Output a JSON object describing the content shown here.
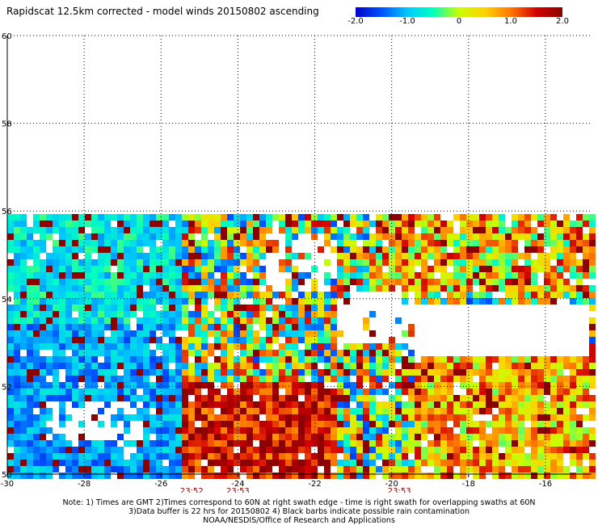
{
  "header": {
    "title": "Rapidscat 12.5km corrected - model winds 20150802 ascending"
  },
  "colorbar": {
    "ticks": [
      "-2.0",
      "-1.0",
      "0",
      "1.0",
      "2.0"
    ],
    "tick_values": [
      -2.0,
      -1.0,
      0,
      1.0,
      2.0
    ],
    "min": -2.0,
    "max": 2.0,
    "stops": [
      "#0000c8",
      "#0050ff",
      "#00c8ff",
      "#00ffc0",
      "#c8ff00",
      "#ffd200",
      "#ff7800",
      "#d20000",
      "#8b0000"
    ]
  },
  "chart_data": {
    "type": "heatmap",
    "title": "Rapidscat 12.5km corrected - model winds 20150802 ascending",
    "xlabel": "",
    "ylabel": "",
    "xlim": [
      -30,
      -14.8
    ],
    "ylim": [
      50,
      60
    ],
    "x_ticks": [
      -30,
      -28,
      -26,
      -24,
      -22,
      -20,
      -18,
      -16
    ],
    "x_tick_labels": [
      "-30",
      "-28",
      "-26",
      "-24",
      "-22",
      "-20",
      "-18",
      "-16"
    ],
    "y_ticks": [
      50,
      52,
      54,
      56,
      58,
      60
    ],
    "y_tick_labels": [
      "50",
      "52",
      "54",
      "56",
      "58",
      "60"
    ],
    "grid": true,
    "value_range": [
      -2.0,
      2.0
    ],
    "time_labels": [
      {
        "text": "23:52",
        "lon": -25.2
      },
      {
        "text": "23:53",
        "lon": -24.0
      },
      {
        "text": "23:53",
        "lon": -19.8
      }
    ]
  },
  "notes": {
    "line1": "Note: 1) Times are GMT 2)Times correspond to 60N at right swath edge - time is right swath for overlapping swaths at 60N",
    "line2": "3)Data buffer is 22 hrs for 20150802 4) Black barbs indicate possible rain contamination",
    "line3": "NOAA/NESDIS/Office of Research and Applications"
  }
}
